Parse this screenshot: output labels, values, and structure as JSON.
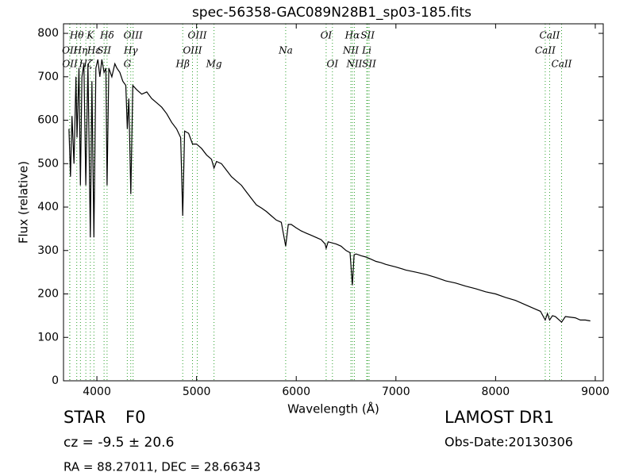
{
  "chart_data": {
    "type": "line",
    "title": "spec-56358-GAC089N28B1_sp03-185.fits",
    "xlabel": "Wavelength (Å)",
    "ylabel": "Flux (relative)",
    "xlim": [
      3665,
      9080
    ],
    "ylim": [
      0,
      822
    ],
    "xticks": [
      4000,
      5000,
      6000,
      7000,
      8000,
      9000
    ],
    "yticks": [
      0,
      100,
      200,
      300,
      400,
      500,
      600,
      700,
      800
    ],
    "color": "#000000",
    "line_color": "#2ca02c",
    "x": [
      3720,
      3735,
      3750,
      3770,
      3790,
      3800,
      3820,
      3835,
      3850,
      3870,
      3889,
      3910,
      3934,
      3950,
      3970,
      3990,
      4010,
      4030,
      4050,
      4072,
      4090,
      4102,
      4120,
      4150,
      4180,
      4200,
      4230,
      4260,
      4290,
      4305,
      4320,
      4340,
      4360,
      4400,
      4450,
      4500,
      4550,
      4600,
      4650,
      4700,
      4750,
      4800,
      4840,
      4861,
      4880,
      4920,
      4960,
      5000,
      5050,
      5100,
      5150,
      5175,
      5200,
      5250,
      5300,
      5350,
      5400,
      5450,
      5500,
      5550,
      5600,
      5650,
      5700,
      5750,
      5800,
      5850,
      5894,
      5920,
      5950,
      6000,
      6050,
      6100,
      6150,
      6200,
      6250,
      6290,
      6300,
      6320,
      6400,
      6450,
      6500,
      6540,
      6563,
      6580,
      6600,
      6650,
      6700,
      6750,
      6800,
      6850,
      6900,
      7000,
      7100,
      7200,
      7300,
      7400,
      7500,
      7600,
      7700,
      7800,
      7900,
      8000,
      8100,
      8200,
      8300,
      8400,
      8450,
      8498,
      8520,
      8542,
      8570,
      8600,
      8662,
      8700,
      8800,
      8850,
      8900,
      8950
    ],
    "values": [
      580,
      470,
      610,
      500,
      700,
      560,
      720,
      450,
      700,
      730,
      450,
      730,
      330,
      690,
      330,
      720,
      740,
      700,
      740,
      710,
      720,
      450,
      720,
      700,
      730,
      720,
      710,
      690,
      680,
      580,
      650,
      430,
      680,
      670,
      660,
      665,
      650,
      640,
      630,
      615,
      595,
      580,
      560,
      380,
      575,
      570,
      545,
      545,
      535,
      520,
      510,
      490,
      505,
      500,
      485,
      470,
      460,
      450,
      435,
      420,
      405,
      398,
      390,
      380,
      370,
      365,
      310,
      360,
      360,
      352,
      345,
      340,
      335,
      330,
      325,
      315,
      305,
      320,
      315,
      310,
      300,
      295,
      220,
      290,
      292,
      288,
      285,
      280,
      275,
      272,
      268,
      262,
      255,
      250,
      245,
      238,
      230,
      225,
      218,
      212,
      205,
      200,
      192,
      185,
      175,
      165,
      160,
      140,
      155,
      140,
      150,
      148,
      135,
      148,
      145,
      140,
      140,
      138
    ],
    "line_rows": [
      [
        {
          "wavelength": 3798,
          "label": "Hθ"
        },
        {
          "wavelength": 3934,
          "label": "K"
        },
        {
          "wavelength": 4102,
          "label": "Hδ"
        },
        {
          "wavelength": 4363,
          "label": "OIII"
        },
        {
          "wavelength": 5007,
          "label": "OIII"
        },
        {
          "wavelength": 6300,
          "label": "OI"
        },
        {
          "wavelength": 6563,
          "label": "Hα"
        },
        {
          "wavelength": 6716,
          "label": "SII"
        },
        {
          "wavelength": 8542,
          "label": "CaII"
        }
      ],
      [
        {
          "wavelength": 3727,
          "label": "OII"
        },
        {
          "wavelength": 3835,
          "label": "Hη"
        },
        {
          "wavelength": 3970,
          "label": "Hε"
        },
        {
          "wavelength": 4072,
          "label": "SII"
        },
        {
          "wavelength": 4340,
          "label": "Hγ"
        },
        {
          "wavelength": 4959,
          "label": "OIII"
        },
        {
          "wavelength": 5894,
          "label": "Na"
        },
        {
          "wavelength": 6548,
          "label": "NII"
        },
        {
          "wavelength": 6707,
          "label": "Li"
        },
        {
          "wavelength": 8498,
          "label": "CaII"
        }
      ],
      [
        {
          "wavelength": 3729,
          "label": "OII"
        },
        {
          "wavelength": 3889,
          "label": "Hζ"
        },
        {
          "wavelength": 4305,
          "label": "G"
        },
        {
          "wavelength": 4861,
          "label": "Hβ"
        },
        {
          "wavelength": 5175,
          "label": "Mg"
        },
        {
          "wavelength": 6363,
          "label": "OI"
        },
        {
          "wavelength": 6583,
          "label": "NII"
        },
        {
          "wavelength": 6731,
          "label": "SII"
        },
        {
          "wavelength": 8662,
          "label": "CaII"
        }
      ]
    ]
  },
  "info": {
    "object_class": "STAR",
    "subclass": "F0",
    "redshift": "cz = -9.5 ± 20.6",
    "coords": "RA = 88.27011, DEC = 28.66343",
    "survey": "LAMOST DR1",
    "obs_date": "Obs-Date:20130306"
  }
}
